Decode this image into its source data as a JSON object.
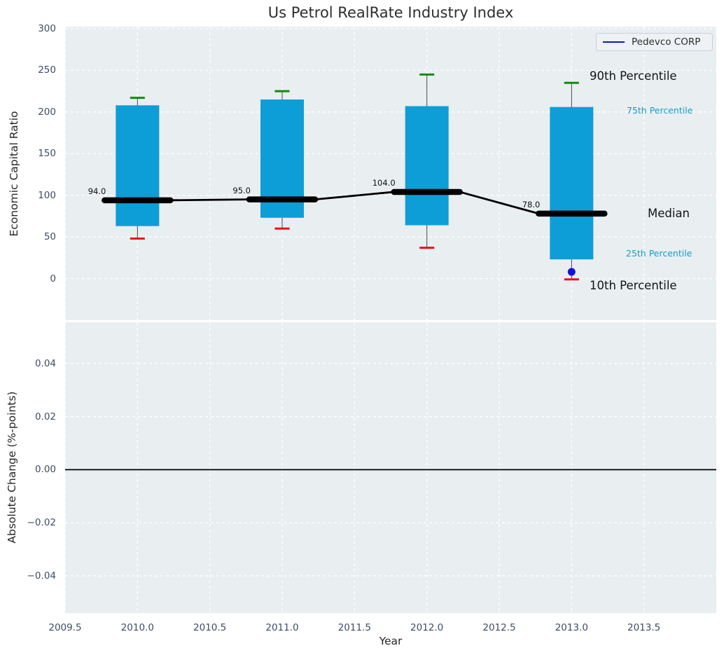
{
  "title": "Us Petrol RealRate Industry Index",
  "legend": {
    "label": "Pedevco CORP"
  },
  "colors": {
    "plot_bg": "#e9eef1",
    "grid": "#ffffff",
    "box_fill": "#0e9ed7",
    "whisker": "#4a4a4a",
    "cap_green": "#0a8f0a",
    "cap_red": "#e81212",
    "median_line": "#000000",
    "company": "#1212d6",
    "tick_text": "#3e4c66",
    "cyan_text": "#14a0c8",
    "zero_line": "#000000"
  },
  "chart_data": [
    {
      "type": "box",
      "title": "Us Petrol RealRate Industry Index",
      "ylabel": "Economic Capital Ratio",
      "ylim": [
        -50,
        302.5
      ],
      "yticks": {
        "values": [
          300,
          250,
          200,
          150,
          100,
          50,
          0
        ],
        "labels": [
          "300",
          "250",
          "200",
          "150",
          "100",
          "50",
          "0"
        ]
      },
      "x": [
        2010,
        2011,
        2012,
        2013
      ],
      "series": [
        {
          "name": "10th Percentile",
          "values": [
            48,
            60,
            37,
            -1
          ]
        },
        {
          "name": "25th Percentile",
          "values": [
            63,
            73,
            64,
            23
          ]
        },
        {
          "name": "Median",
          "values": [
            94,
            95,
            104,
            78
          ]
        },
        {
          "name": "75th Percentile",
          "values": [
            208,
            215,
            207,
            206
          ]
        },
        {
          "name": "90th Percentile",
          "values": [
            217,
            225,
            245,
            235
          ]
        }
      ],
      "median_labels": [
        "94.0",
        "95.0",
        "104.0",
        "78.0"
      ],
      "company_series": {
        "name": "Pedevco CORP",
        "points": [
          [
            2013,
            8
          ]
        ]
      },
      "annotations": {
        "p90": "90th Percentile",
        "p75": "75th Percentile",
        "median": "Median",
        "p25": "25th Percentile",
        "p10": "10th Percentile"
      },
      "legend_position": "upper right",
      "grid": "on"
    },
    {
      "type": "line",
      "xlabel": "Year",
      "ylabel": "Absolute Change (%-points)",
      "xlim": [
        2009.5,
        2014.0
      ],
      "xticks": {
        "values": [
          2009.5,
          2010.0,
          2010.5,
          2011.0,
          2011.5,
          2012.0,
          2012.5,
          2013.0,
          2013.5
        ],
        "labels": [
          "2009.5",
          "2010.0",
          "2010.5",
          "2011.0",
          "2011.5",
          "2012.0",
          "2012.5",
          "2013.0",
          "2013.5"
        ]
      },
      "ylim": [
        -0.054,
        0.0555
      ],
      "yticks": {
        "values": [
          0.04,
          0.02,
          0,
          -0.02,
          -0.04
        ],
        "labels": [
          "0.04",
          "0.02",
          "0.00",
          "−0.02",
          "−0.04"
        ]
      },
      "zero_line": 0.0,
      "grid": "on"
    }
  ]
}
